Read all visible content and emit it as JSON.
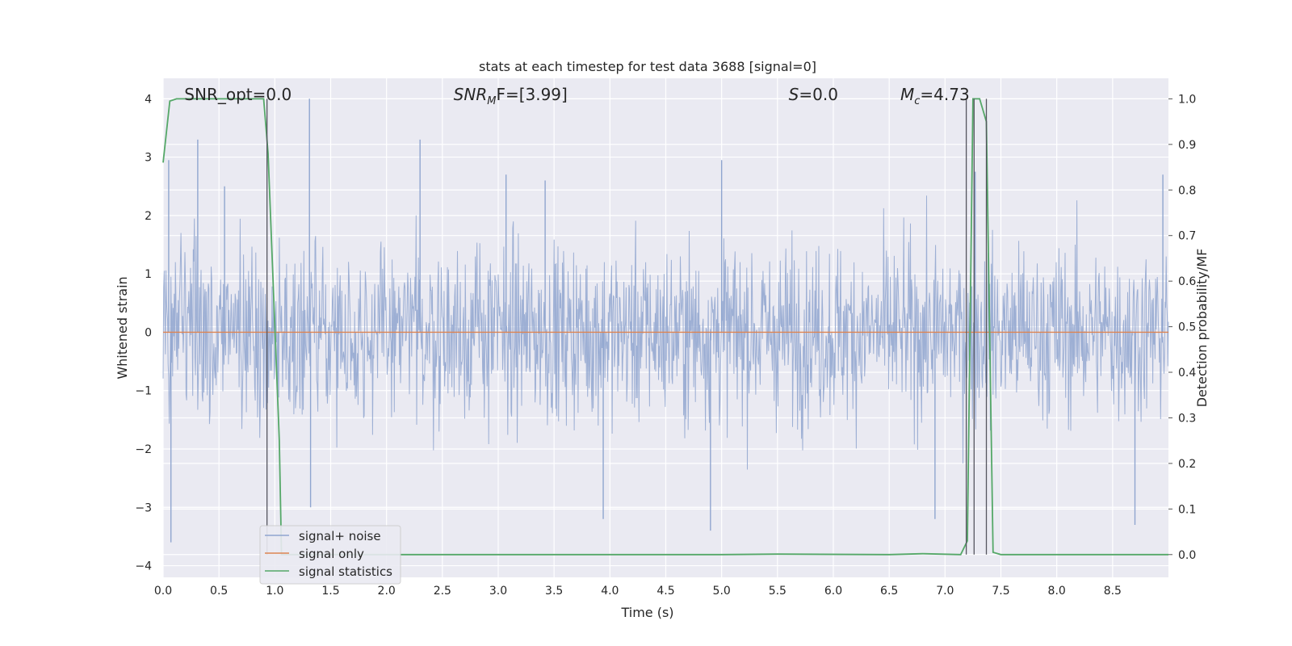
{
  "chart_data": {
    "type": "line",
    "title": "stats at each timestep for test data 3688 [signal=0]",
    "xlabel": "Time (s)",
    "ylabel_left": "Whitened strain",
    "ylabel_right": "Detection probability/MF",
    "xlim": [
      0,
      9.0
    ],
    "ylim_left": [
      -4.2,
      4.35
    ],
    "ylim_right": [
      -0.05,
      1.045
    ],
    "x_ticks": [
      "0.0",
      "0.5",
      "1.0",
      "1.5",
      "2.0",
      "2.5",
      "3.0",
      "3.5",
      "4.0",
      "4.5",
      "5.0",
      "5.5",
      "6.0",
      "6.5",
      "7.0",
      "7.5",
      "8.0",
      "8.5"
    ],
    "y_ticks_left": [
      "−4",
      "−3",
      "−2",
      "−1",
      "0",
      "1",
      "2",
      "3",
      "4"
    ],
    "y_ticks_right": [
      "0.0",
      "0.1",
      "0.2",
      "0.3",
      "0.4",
      "0.5",
      "0.6",
      "0.7",
      "0.8",
      "0.9",
      "1.0"
    ],
    "grid": true,
    "legend_position": "lower-left",
    "annotations": [
      {
        "text": "SNR_opt=0.0",
        "x": 0.19
      },
      {
        "math": "SNR",
        "sub": "M",
        "tail": "F=[3.99]",
        "x": 2.6
      },
      {
        "math": "S",
        "sub": "",
        "tail": "=0.0",
        "x": 5.6
      },
      {
        "math": "M",
        "sub": "c",
        "tail": "=4.73",
        "x": 6.6
      }
    ],
    "series": [
      {
        "name": "signal+ noise",
        "axis": "left",
        "color": "#8fa5cf",
        "style": "dense noise, typical range −2 to 2",
        "spikes": [
          [
            0.05,
            2.95
          ],
          [
            0.07,
            -3.6
          ],
          [
            0.31,
            3.3
          ],
          [
            0.55,
            2.5
          ],
          [
            1.31,
            4.0
          ],
          [
            1.32,
            -3.0
          ],
          [
            2.3,
            3.3
          ],
          [
            3.07,
            2.7
          ],
          [
            3.42,
            2.6
          ],
          [
            3.94,
            -3.2
          ],
          [
            4.9,
            -3.4
          ],
          [
            5.0,
            2.95
          ],
          [
            6.91,
            -3.2
          ],
          [
            7.27,
            2.75
          ],
          [
            8.7,
            -3.3
          ],
          [
            8.95,
            2.7
          ]
        ]
      },
      {
        "name": "signal only",
        "axis": "left",
        "color": "#dd8452",
        "x": [
          0,
          9.0
        ],
        "y": [
          0,
          0
        ]
      },
      {
        "name": "signal statistics",
        "axis": "right",
        "color": "#55a868",
        "x": [
          0.0,
          0.06,
          0.12,
          0.5,
          0.9,
          0.94,
          1.04,
          1.06,
          1.1,
          3.0,
          5.0,
          5.5,
          6.5,
          6.8,
          7.14,
          7.2,
          7.25,
          7.31,
          7.37,
          7.43,
          7.5,
          9.0
        ],
        "y": [
          0.86,
          0.995,
          1.0,
          1.0,
          1.0,
          0.88,
          0.25,
          0.0,
          0.0,
          0.0,
          0.0,
          0.001,
          0.0,
          0.002,
          0.0,
          0.03,
          1.0,
          1.0,
          0.95,
          0.005,
          0.0,
          0.0
        ]
      }
    ],
    "markers": [
      0.93,
      7.19,
      7.26,
      7.37
    ]
  }
}
